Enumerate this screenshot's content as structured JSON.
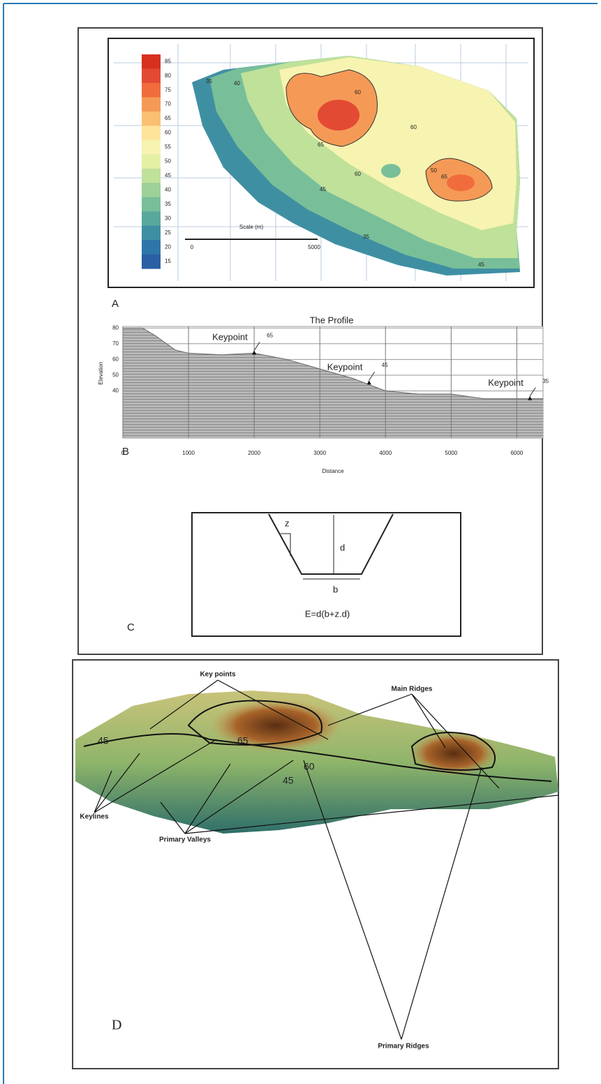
{
  "panel_a": {
    "label": "A",
    "legend": [
      {
        "label": "85",
        "color": "#d7301f"
      },
      {
        "label": "80",
        "color": "#e34a33"
      },
      {
        "label": "75",
        "color": "#f16c3c"
      },
      {
        "label": "70",
        "color": "#f59a56"
      },
      {
        "label": "65",
        "color": "#fbbf73"
      },
      {
        "label": "60",
        "color": "#fde49b"
      },
      {
        "label": "55",
        "color": "#f7f3b0"
      },
      {
        "label": "50",
        "color": "#e4f0a4"
      },
      {
        "label": "45",
        "color": "#bfe19a"
      },
      {
        "label": "40",
        "color": "#9ed09a"
      },
      {
        "label": "35",
        "color": "#78bf99"
      },
      {
        "label": "30",
        "color": "#5aa89b"
      },
      {
        "label": "25",
        "color": "#3f8fa3"
      },
      {
        "label": "20",
        "color": "#2f76a8"
      },
      {
        "label": "15",
        "color": "#2a5fa3"
      }
    ],
    "contour_labels": [
      "35",
      "40",
      "60",
      "65",
      "60",
      "50",
      "65",
      "60",
      "45",
      "35",
      "45"
    ],
    "scale": {
      "title": "Scale (m)",
      "start": "0",
      "end": "5000"
    }
  },
  "panel_b": {
    "label": "B",
    "title": "The Profile",
    "x_label": "Distance",
    "y_label": "Elevation",
    "x": [
      0,
      300,
      500,
      800,
      1000,
      1500,
      2000,
      2500,
      3000,
      3500,
      4000,
      4500,
      5000,
      5500,
      6400
    ],
    "values": [
      80,
      80,
      75,
      66,
      64,
      63,
      64,
      60,
      54,
      48,
      40,
      38,
      38,
      35,
      35
    ],
    "xlim": [
      0,
      6400
    ],
    "ylim": [
      10,
      81
    ],
    "xticks": [
      0,
      1000,
      2000,
      3000,
      4000,
      5000,
      6000
    ],
    "yticks": [
      40,
      50,
      60,
      70,
      80
    ],
    "keypoints": [
      {
        "label": "Keypoint",
        "tag": "65",
        "x": 2000,
        "y": 64
      },
      {
        "label": "Keypoint",
        "tag": "45",
        "x": 3750,
        "y": 45
      },
      {
        "label": "Keypoint",
        "tag": "35",
        "x": 6200,
        "y": 35
      }
    ]
  },
  "panel_c": {
    "label": "C",
    "z": "z",
    "d": "d",
    "b": "b",
    "formula": "E=d(b+z.d)"
  },
  "panel_d": {
    "label": "D",
    "key_points": "Key points",
    "main_ridges": "Main Ridges",
    "keylines": "Keylines",
    "primary_valleys": "Primary Valleys",
    "primary_ridges": "Primary Ridges",
    "contour_labels": [
      "45",
      "65",
      "45",
      "60"
    ]
  }
}
